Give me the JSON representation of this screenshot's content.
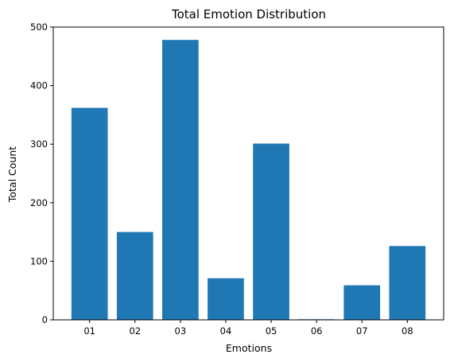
{
  "chart_data": {
    "type": "bar",
    "title": "Total Emotion Distribution",
    "xlabel": "Emotions",
    "ylabel": "Total Count",
    "categories": [
      "01",
      "02",
      "03",
      "04",
      "05",
      "06",
      "07",
      "08"
    ],
    "values": [
      362,
      150,
      478,
      71,
      301,
      1,
      59,
      126
    ],
    "ylim": [
      0,
      500
    ],
    "yticks": [
      0,
      100,
      200,
      300,
      400,
      500
    ],
    "bar_color": "#1f77b4",
    "grid": false,
    "legend": "none"
  }
}
